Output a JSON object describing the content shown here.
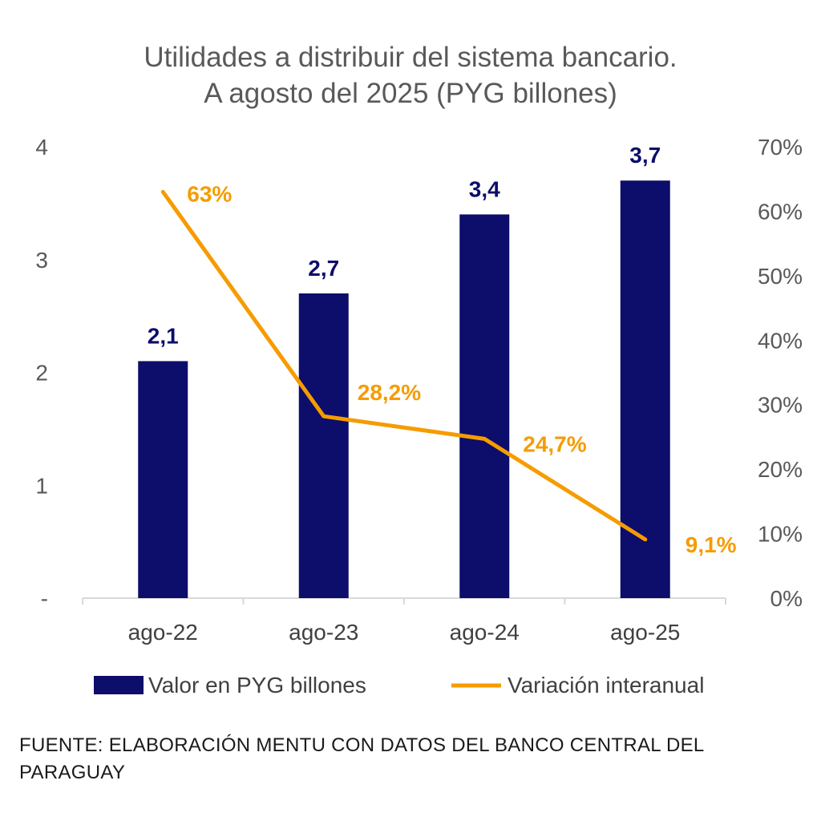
{
  "chart_data": {
    "type": "bar",
    "title_lines": [
      "Utilidades a distribuir del sistema bancario.",
      "A agosto del 2025 (PYG billones)"
    ],
    "categories": [
      "ago-22",
      "ago-23",
      "ago-24",
      "ago-25"
    ],
    "series": [
      {
        "name": "Valor en PYG billones",
        "type": "bar",
        "axis": "left",
        "color": "#0d0d6b",
        "values": [
          2.1,
          2.7,
          3.4,
          3.7
        ],
        "labels": [
          "2,1",
          "2,7",
          "3,4",
          "3,7"
        ]
      },
      {
        "name": "Variación interanual",
        "type": "line",
        "axis": "right",
        "color": "#f59c00",
        "values": [
          63,
          28.2,
          24.7,
          9.1
        ],
        "labels": [
          "63%",
          "28,2%",
          "24,7%",
          "9,1%"
        ]
      }
    ],
    "y_left": {
      "range": [
        0,
        4
      ],
      "ticks": [
        "-",
        "1",
        "2",
        "3",
        "4"
      ]
    },
    "y_right": {
      "range": [
        0,
        70
      ],
      "ticks": [
        "0%",
        "10%",
        "20%",
        "30%",
        "40%",
        "50%",
        "60%",
        "70%"
      ]
    },
    "grid": false,
    "legend_position": "bottom"
  },
  "source_text": "FUENTE: ELABORACIÓN MENTU CON DATOS DEL BANCO CENTRAL DEL PARAGUAY"
}
